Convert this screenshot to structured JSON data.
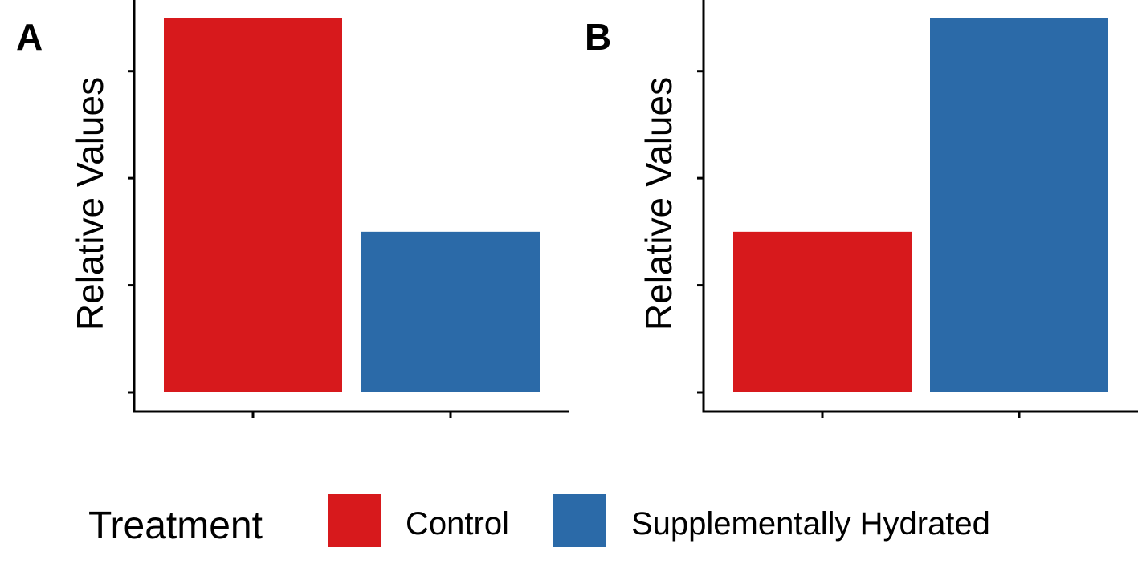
{
  "chart_data": [
    {
      "type": "bar",
      "panel_label": "A",
      "categories": [
        "Control",
        "Supplementally Hydrated"
      ],
      "values": [
        3.5,
        1.5
      ],
      "ylabel": "Relative Values",
      "xlabel": "",
      "ylim": [
        0,
        3.5
      ],
      "y_ticks": [
        0,
        1,
        2,
        3
      ],
      "y_tick_labels_visible": false,
      "x_tick_labels_visible": false,
      "grid": false,
      "colors": [
        "#d7191c",
        "#2b6aa8"
      ]
    },
    {
      "type": "bar",
      "panel_label": "B",
      "categories": [
        "Control",
        "Supplementally Hydrated"
      ],
      "values": [
        1.5,
        3.5
      ],
      "ylabel": "Relative Values",
      "xlabel": "",
      "ylim": [
        0,
        3.5
      ],
      "y_ticks": [
        0,
        1,
        2,
        3
      ],
      "y_tick_labels_visible": false,
      "x_tick_labels_visible": false,
      "grid": false,
      "colors": [
        "#d7191c",
        "#2b6aa8"
      ]
    }
  ],
  "legend": {
    "title": "Treatment",
    "placement": "bottom",
    "items": [
      {
        "label": "Control",
        "color": "#d7191c"
      },
      {
        "label": "Supplementally Hydrated",
        "color": "#2b6aa8"
      }
    ]
  }
}
